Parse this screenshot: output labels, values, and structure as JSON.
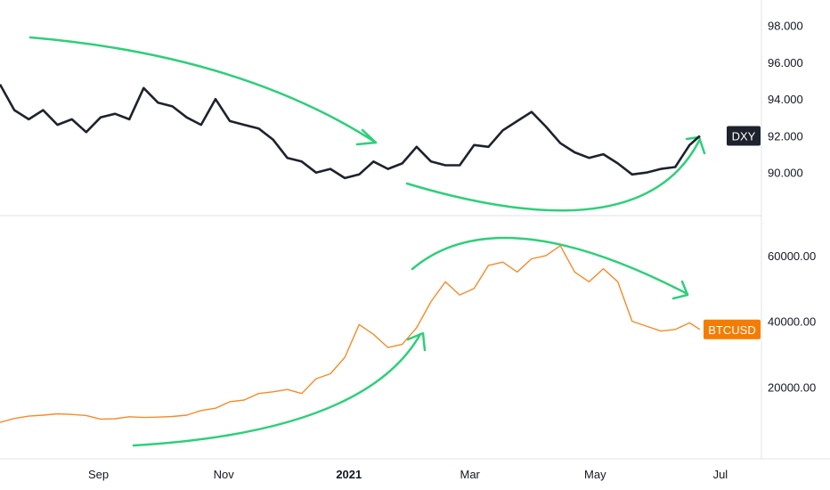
{
  "chart_data": [
    {
      "type": "line",
      "name": "DXY",
      "series_label": "DXY",
      "color": "#1e222d",
      "badge_bg": "#1e222d",
      "badge_fg": "#ffffff",
      "ylim": [
        88.0,
        99.0
      ],
      "y_ticks": [
        "98.000",
        "96.000",
        "94.000",
        "92.000",
        "90.000"
      ],
      "y_tick_values": [
        98,
        96,
        94,
        92,
        90
      ],
      "last_value": 92.0,
      "x": [
        "2020-07-15",
        "2020-07-22",
        "2020-07-29",
        "2020-08-05",
        "2020-08-12",
        "2020-08-19",
        "2020-08-26",
        "2020-09-02",
        "2020-09-09",
        "2020-09-16",
        "2020-09-23",
        "2020-09-30",
        "2020-10-07",
        "2020-10-14",
        "2020-10-21",
        "2020-10-28",
        "2020-11-04",
        "2020-11-11",
        "2020-11-18",
        "2020-11-25",
        "2020-12-02",
        "2020-12-09",
        "2020-12-16",
        "2020-12-23",
        "2020-12-30",
        "2021-01-06",
        "2021-01-13",
        "2021-01-20",
        "2021-01-27",
        "2021-02-03",
        "2021-02-10",
        "2021-02-17",
        "2021-02-24",
        "2021-03-03",
        "2021-03-10",
        "2021-03-17",
        "2021-03-24",
        "2021-03-31",
        "2021-04-07",
        "2021-04-14",
        "2021-04-21",
        "2021-04-28",
        "2021-05-05",
        "2021-05-12",
        "2021-05-19",
        "2021-05-26",
        "2021-06-02",
        "2021-06-09",
        "2021-06-16",
        "2021-06-21"
      ],
      "values": [
        94.8,
        93.4,
        92.9,
        93.4,
        92.6,
        92.9,
        92.2,
        93.0,
        93.2,
        92.9,
        94.6,
        93.8,
        93.6,
        93.0,
        92.6,
        94.0,
        92.8,
        92.6,
        92.4,
        91.8,
        90.8,
        90.6,
        90.0,
        90.2,
        89.7,
        89.9,
        90.6,
        90.2,
        90.5,
        91.4,
        90.6,
        90.4,
        90.4,
        91.5,
        91.4,
        92.3,
        92.8,
        93.3,
        92.5,
        91.6,
        91.1,
        90.8,
        91.0,
        90.5,
        89.9,
        90.0,
        90.2,
        90.3,
        91.5,
        92.0
      ],
      "title": "",
      "xlabel": "",
      "ylabel": ""
    },
    {
      "type": "line",
      "name": "BTCUSD",
      "series_label": "BTCUSD",
      "color": "#f68b2a",
      "badge_bg": "#f57c00",
      "badge_fg": "#ffffff",
      "ylim": [
        0,
        70000
      ],
      "y_ticks": [
        "60000.00",
        "40000.00",
        "20000.00"
      ],
      "y_tick_values": [
        60000,
        40000,
        20000
      ],
      "last_value": 37500,
      "x": [
        "2020-07-15",
        "2020-07-22",
        "2020-07-29",
        "2020-08-05",
        "2020-08-12",
        "2020-08-19",
        "2020-08-26",
        "2020-09-02",
        "2020-09-09",
        "2020-09-16",
        "2020-09-23",
        "2020-09-30",
        "2020-10-07",
        "2020-10-14",
        "2020-10-21",
        "2020-10-28",
        "2020-11-04",
        "2020-11-11",
        "2020-11-18",
        "2020-11-25",
        "2020-12-02",
        "2020-12-09",
        "2020-12-16",
        "2020-12-23",
        "2020-12-30",
        "2021-01-06",
        "2021-01-13",
        "2021-01-20",
        "2021-01-27",
        "2021-02-03",
        "2021-02-10",
        "2021-02-17",
        "2021-02-24",
        "2021-03-03",
        "2021-03-10",
        "2021-03-17",
        "2021-03-24",
        "2021-03-31",
        "2021-04-07",
        "2021-04-14",
        "2021-04-21",
        "2021-04-28",
        "2021-05-05",
        "2021-05-12",
        "2021-05-19",
        "2021-05-26",
        "2021-06-02",
        "2021-06-09",
        "2021-06-16",
        "2021-06-21"
      ],
      "values": [
        9200,
        10400,
        11100,
        11400,
        11800,
        11600,
        11300,
        10200,
        10300,
        10900,
        10700,
        10800,
        11000,
        11400,
        12800,
        13500,
        15500,
        16000,
        18000,
        18500,
        19200,
        18000,
        22500,
        24000,
        29000,
        39000,
        36000,
        32000,
        33000,
        38000,
        46000,
        52000,
        48000,
        50000,
        57000,
        58000,
        55000,
        59000,
        60000,
        63000,
        55000,
        52000,
        56000,
        52000,
        40000,
        38500,
        37000,
        37500,
        39500,
        37500
      ],
      "title": "",
      "xlabel": "",
      "ylabel": ""
    }
  ],
  "x_axis": {
    "labels": [
      "Sep",
      "Nov",
      "2021",
      "Mar",
      "May",
      "Jul"
    ],
    "label_dates": [
      "2020-09-01",
      "2020-11-01",
      "2021-01-01",
      "2021-03-01",
      "2021-05-01",
      "2021-07-01"
    ],
    "bold": [
      false,
      false,
      true,
      false,
      false,
      false
    ],
    "xlim": [
      "2020-07-15",
      "2021-07-21"
    ]
  },
  "colors": {
    "annotation_arrows": "#2ecf7a",
    "grid_divider": "#e0e3eb"
  }
}
